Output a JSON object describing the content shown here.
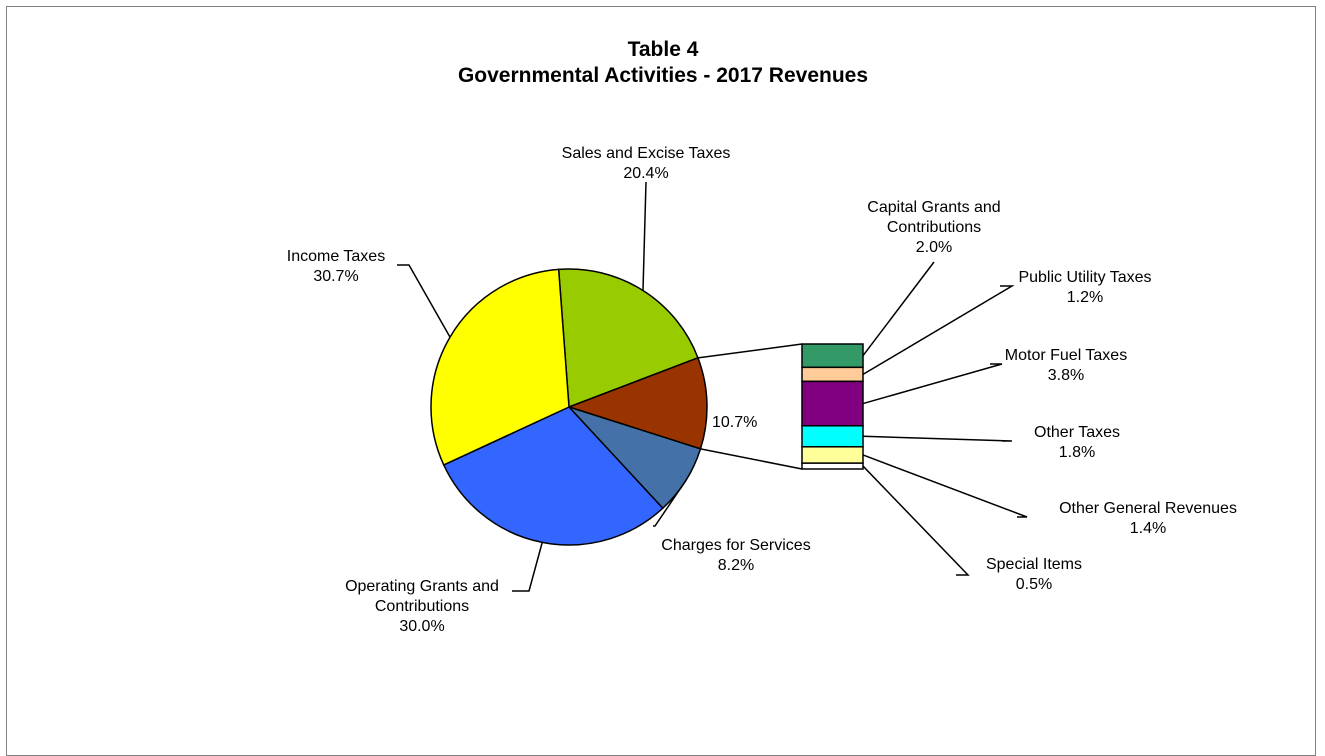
{
  "chart_data": {
    "type": "pie",
    "title": "Table 4",
    "subtitle": "Governmental Activities - 2017 Revenues",
    "slices": [
      {
        "label_lines": [
          "Sales and Excise Taxes"
        ],
        "value": 20.4,
        "value_label": "20.4%",
        "color": "#99CC00"
      },
      {
        "label_lines": [],
        "value": 10.7,
        "value_label": "10.7%",
        "color": "#993300",
        "group": true
      },
      {
        "label_lines": [
          "Charges for Services"
        ],
        "value": 8.2,
        "value_label": "8.2%",
        "color": "#4472A8"
      },
      {
        "label_lines": [
          "Operating Grants and",
          "Contributions"
        ],
        "value": 30.0,
        "value_label": "30.0%",
        "color": "#3366FF"
      },
      {
        "label_lines": [
          "Income Taxes"
        ],
        "value": 30.7,
        "value_label": "30.7%",
        "color": "#FFFF00"
      }
    ],
    "breakdown": [
      {
        "label_lines": [
          "Capital Grants and",
          "Contributions"
        ],
        "value": 2.0,
        "value_label": "2.0%",
        "color": "#339966"
      },
      {
        "label_lines": [
          "Public Utility Taxes"
        ],
        "value": 1.2,
        "value_label": "1.2%",
        "color": "#FFCC99"
      },
      {
        "label_lines": [
          "Motor Fuel Taxes"
        ],
        "value": 3.8,
        "value_label": "3.8%",
        "color": "#800080"
      },
      {
        "label_lines": [
          "Other Taxes"
        ],
        "value": 1.8,
        "value_label": "1.8%",
        "color": "#00FFFF"
      },
      {
        "label_lines": [
          "Other General Revenues"
        ],
        "value": 1.4,
        "value_label": "1.4%",
        "color": "#FFFF99"
      },
      {
        "label_lines": [
          "Special Items"
        ],
        "value": 0.5,
        "value_label": "0.5%",
        "color": "#FFFFFF"
      }
    ]
  }
}
